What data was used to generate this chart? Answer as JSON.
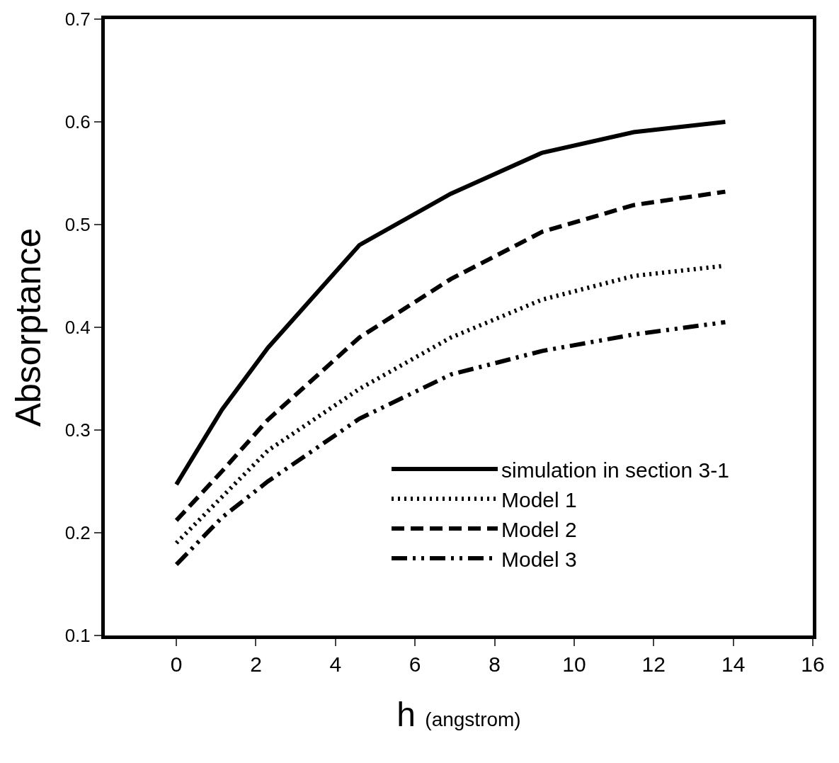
{
  "chart_data": {
    "type": "line",
    "xlabel": "h (angstrom)",
    "ylabel": "Absorptance",
    "x": [
      0,
      1.15,
      2.3,
      4.6,
      6.9,
      9.2,
      11.5,
      13.8
    ],
    "series": [
      {
        "name": "simulation in section 3-1",
        "color": "#000000",
        "line_style": "solid",
        "values": [
          0.247,
          0.32,
          0.38,
          0.48,
          0.53,
          0.57,
          0.59,
          0.6
        ]
      },
      {
        "name": "Model 1",
        "color": "#000000",
        "line_style": "dotted",
        "values": [
          0.19,
          0.235,
          0.28,
          0.34,
          0.39,
          0.427,
          0.45,
          0.46
        ]
      },
      {
        "name": "Model 2",
        "color": "#000000",
        "line_style": "dashed",
        "values": [
          0.212,
          0.26,
          0.31,
          0.39,
          0.447,
          0.493,
          0.519,
          0.532
        ]
      },
      {
        "name": "Model 3",
        "color": "#000000",
        "line_style": "dashdotdot",
        "values": [
          0.169,
          0.215,
          0.25,
          0.311,
          0.354,
          0.377,
          0.393,
          0.405
        ]
      }
    ],
    "xlim": [
      -1.8,
      16
    ],
    "xticks": [
      0,
      2,
      4,
      6,
      8,
      10,
      12,
      14,
      16
    ],
    "ylim": [
      0.1,
      0.7
    ],
    "yticks": [
      0.1,
      0.2,
      0.3,
      0.4,
      0.5,
      0.6,
      0.7
    ],
    "legend": "bottom right",
    "marker": "none"
  }
}
